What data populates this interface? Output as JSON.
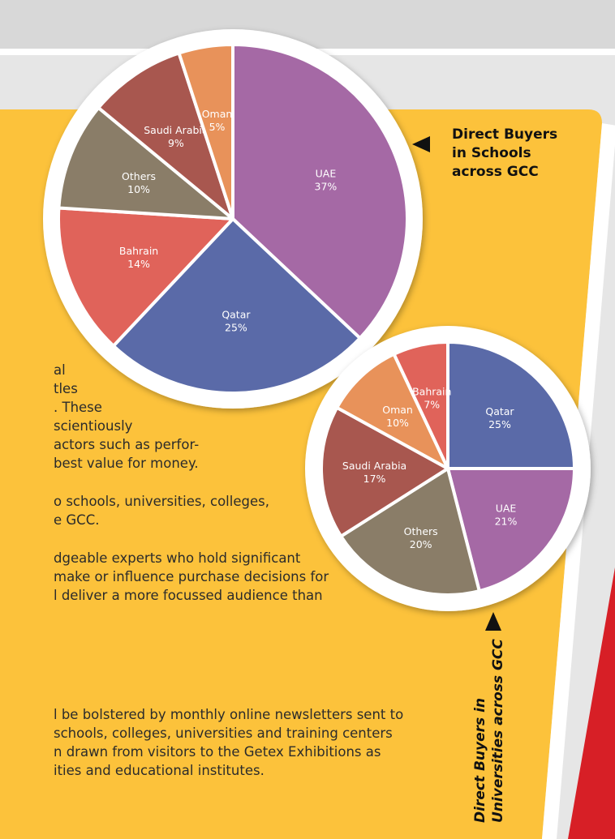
{
  "chart_data": [
    {
      "type": "pie",
      "title_lines": [
        "Direct Buyers",
        "in Schools",
        "across GCC"
      ],
      "categories": [
        "UAE",
        "Qatar",
        "Bahrain",
        "Others",
        "Saudi Arabia",
        "Oman"
      ],
      "values": [
        37,
        25,
        14,
        10,
        9,
        5
      ],
      "value_labels": [
        "37%",
        "25%",
        "14%",
        "10%",
        "9%",
        "5%"
      ],
      "colors": [
        "#a569a5",
        "#5a6aa8",
        "#e0635a",
        "#8a7d68",
        "#a8574f",
        "#e8925a"
      ]
    },
    {
      "type": "pie",
      "title_lines": [
        "Direct Buyers in",
        "Universities across GCC"
      ],
      "categories": [
        "Qatar",
        "UAE",
        "Others",
        "Saudi Arabia",
        "Oman",
        "Bahrain"
      ],
      "values": [
        25,
        21,
        20,
        17,
        10,
        7
      ],
      "value_labels": [
        "25%",
        "21%",
        "20%",
        "17%",
        "10%",
        "7%"
      ],
      "colors": [
        "#5a6aa8",
        "#a569a5",
        "#8a7d68",
        "#a8574f",
        "#e8925a",
        "#e0635a"
      ]
    }
  ],
  "body_text": [
    "al",
    "tles",
    ". These",
    "scientiously",
    "actors such as perfor-",
    "best value for money.",
    "o schools, universities, colleges,",
    "e GCC.",
    "dgeable experts who hold significant",
    "make or influence purchase decisions for",
    "l deliver a more focussed audience than",
    "l be bolstered by monthly online newsletters sent to",
    "schools, colleges, universities and training centers",
    "n drawn from visitors to the Getex Exhibitions as",
    "ities and educational institutes."
  ]
}
